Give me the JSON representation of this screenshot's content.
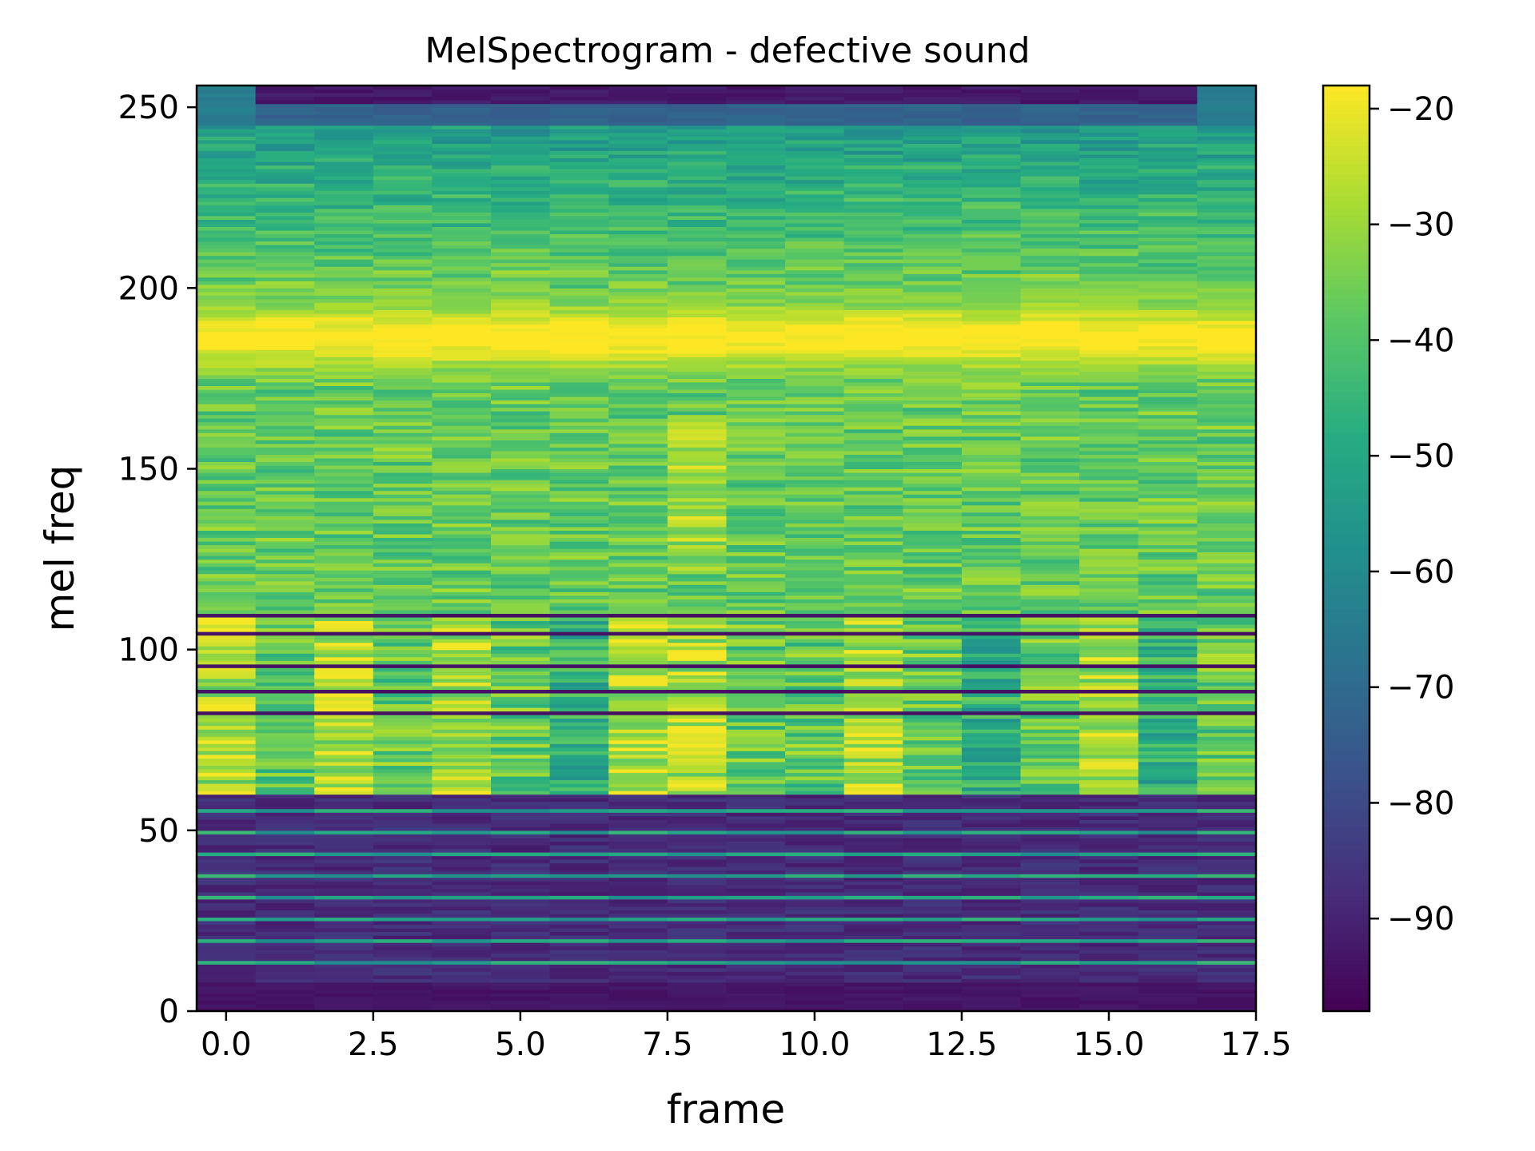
{
  "chart_data": {
    "type": "heatmap",
    "title": "MelSpectrogram - defective sound",
    "xlabel": "frame",
    "ylabel": "mel freq",
    "x": [
      0,
      1,
      2,
      3,
      4,
      5,
      6,
      7,
      8,
      9,
      10,
      11,
      12,
      13,
      14,
      15,
      16,
      17
    ],
    "xlim": [
      -0.5,
      17.5
    ],
    "ylim": [
      0,
      256
    ],
    "n_mel_bins": 256,
    "x_ticks": [
      "0.0",
      "2.5",
      "5.0",
      "7.5",
      "10.0",
      "12.5",
      "15.0",
      "17.5"
    ],
    "y_ticks": [
      "0",
      "50",
      "100",
      "150",
      "200",
      "250"
    ],
    "colormap": "viridis",
    "colorbar": {
      "range": [
        -98,
        -18
      ],
      "ticks": [
        "−20",
        "−30",
        "−40",
        "−50",
        "−60",
        "−70",
        "−80",
        "−90"
      ],
      "tick_values": [
        -20,
        -30,
        -40,
        -50,
        -60,
        -70,
        -80,
        -90
      ]
    },
    "approx_band_profile_db": [
      {
        "mel_from": 0,
        "mel_to": 8,
        "db": -95
      },
      {
        "mel_from": 8,
        "mel_to": 60,
        "db": -85,
        "note": "striped low band, alternating -95 / -60 rows"
      },
      {
        "mel_from": 60,
        "mel_to": 106,
        "db": -35,
        "note": "striped band with dark separator rows"
      },
      {
        "mel_from": 106,
        "mel_to": 175,
        "db": -38
      },
      {
        "mel_from": 175,
        "mel_to": 200,
        "db": -25,
        "note": "bright band, peak near mel 185"
      },
      {
        "mel_from": 200,
        "mel_to": 245,
        "db": -45
      },
      {
        "mel_from": 245,
        "mel_to": 256,
        "db": -95,
        "note": "dark top except frames 0 and 17 (~-65)"
      }
    ]
  }
}
